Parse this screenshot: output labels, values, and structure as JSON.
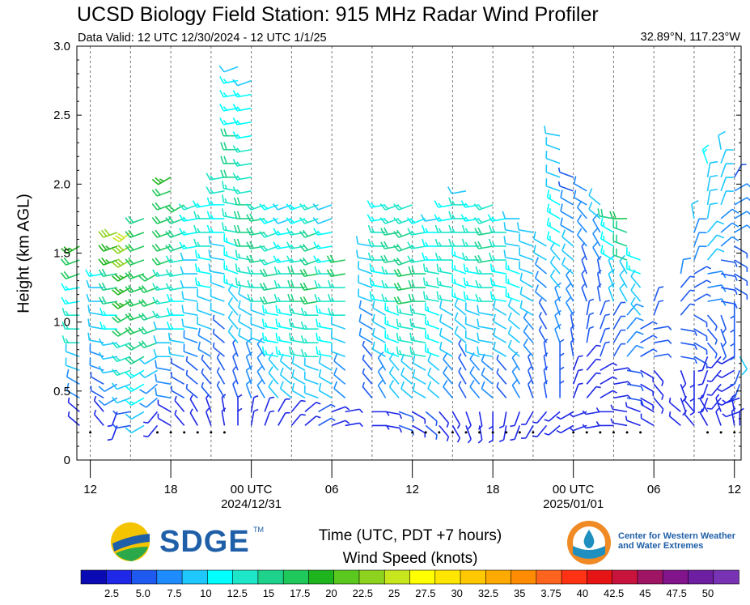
{
  "header": {
    "title": "UCSD Biology Field Station: 915 MHz Radar Wind Profiler",
    "valid": "Data Valid: 12 UTC 12/30/2024 - 12 UTC 1/1/25",
    "coords": "32.89°N, 117.23°W"
  },
  "axes": {
    "ylabel": "Height (km AGL)",
    "xlabel": "Time (UTC, PDT +7 hours)"
  },
  "logos": {
    "sdge": "SDGE",
    "sdge_tm": "TM",
    "cw3e": "Center for Western Weather and Water Extremes"
  },
  "colorbar": {
    "title": "Wind Speed (knots)",
    "colors": [
      "#0a0ab4",
      "#1e28e6",
      "#1e5af0",
      "#1e8cff",
      "#1ec8ff",
      "#00ffff",
      "#1ee6c8",
      "#1ed28c",
      "#1ec85a",
      "#1eb41e",
      "#5ac81e",
      "#8cd21e",
      "#c8e61e",
      "#ffff00",
      "#ffe600",
      "#ffc800",
      "#ffaa00",
      "#ff8c00",
      "#ff641e",
      "#ff3214",
      "#e61414",
      "#c8143c",
      "#a01464",
      "#82148c",
      "#6e1ea0",
      "#7832b4"
    ]
  },
  "chart_data": {
    "type": "wind-barb-time-height",
    "title": "UCSD Biology Field Station: 915 MHz Radar Wind Profiler",
    "ylabel": "Height (km AGL)",
    "xlabel": "Time (UTC, PDT +7 hours)",
    "ylim": [
      0,
      3.0
    ],
    "yticks": [
      "0",
      "0.5",
      "1.0",
      "1.5",
      "2.0",
      "2.5",
      "3.0"
    ],
    "x_range_hours": [
      -1,
      48.5
    ],
    "xticks": [
      {
        "h": 0,
        "label": "12",
        "sub": ""
      },
      {
        "h": 6,
        "label": "18",
        "sub": ""
      },
      {
        "h": 12,
        "label": "00 UTC",
        "sub": "2024/12/31"
      },
      {
        "h": 18,
        "label": "06",
        "sub": ""
      },
      {
        "h": 24,
        "label": "12",
        "sub": ""
      },
      {
        "h": 30,
        "label": "18",
        "sub": ""
      },
      {
        "h": 36,
        "label": "00 UTC",
        "sub": "2025/01/01"
      },
      {
        "h": 42,
        "label": "06",
        "sub": ""
      },
      {
        "h": 48,
        "label": "12",
        "sub": ""
      }
    ],
    "dashed_hours": [
      0,
      3,
      6,
      9,
      12,
      15,
      18,
      21,
      24,
      27,
      30,
      33,
      36,
      39,
      42,
      45,
      48
    ],
    "colorbar_labels": [
      "2.5",
      "5.0",
      "7.5",
      "10",
      "12.5",
      "15",
      "17.5",
      "20",
      "22.5",
      "25",
      "27.5",
      "30",
      "32.5",
      "35",
      "3.75",
      "40",
      "42.5",
      "45",
      "47.5",
      "50"
    ],
    "profiles": [
      {
        "h": -0.8,
        "top": 1.65,
        "spd": [
          4,
          8,
          12,
          16,
          14,
          20,
          24
        ],
        "dir": [
          310,
          300,
          290,
          270,
          260,
          250,
          240
        ]
      },
      {
        "h": 1.0,
        "top": 1.4,
        "spd": [
          3,
          6,
          8,
          10,
          12,
          14
        ],
        "dir": [
          320,
          300,
          290,
          280,
          270,
          260
        ]
      },
      {
        "h": 2.0,
        "top": 1.75,
        "spd": [
          4,
          8,
          10,
          14,
          18,
          24,
          28
        ],
        "dir": [
          200,
          240,
          260,
          270,
          260,
          250,
          250
        ]
      },
      {
        "h": 3.0,
        "top": 1.75,
        "spd": [
          6,
          10,
          16,
          20,
          24,
          28,
          32
        ],
        "dir": [
          260,
          250,
          250,
          240,
          240,
          240,
          230
        ]
      },
      {
        "h": 4.0,
        "top": 1.85,
        "spd": [
          10,
          14,
          18,
          22,
          22,
          20,
          18
        ],
        "dir": [
          240,
          240,
          240,
          250,
          250,
          250,
          250
        ]
      },
      {
        "h": 5.0,
        "top": 1.4,
        "spd": [
          3,
          8,
          12,
          18,
          22,
          20
        ],
        "dir": [
          220,
          230,
          240,
          250,
          250,
          240
        ]
      },
      {
        "h": 6.0,
        "top": 2.15,
        "spd": [
          4,
          8,
          12,
          16,
          20,
          22,
          24
        ],
        "dir": [
          300,
          280,
          270,
          260,
          250,
          250,
          240
        ]
      },
      {
        "h": 7.0,
        "top": 1.9,
        "spd": [
          3,
          6,
          10,
          14,
          16,
          18,
          20
        ],
        "dir": [
          320,
          300,
          280,
          270,
          260,
          250,
          240
        ]
      },
      {
        "h": 8.0,
        "top": 1.9,
        "spd": [
          3,
          6,
          8,
          10,
          12,
          14,
          16
        ],
        "dir": [
          330,
          310,
          290,
          280,
          270,
          260,
          250
        ]
      },
      {
        "h": 9.0,
        "top": 1.9,
        "spd": [
          3,
          5,
          8,
          12,
          14,
          16,
          14
        ],
        "dir": [
          340,
          320,
          300,
          290,
          280,
          270,
          260
        ]
      },
      {
        "h": 10.0,
        "top": 2.1,
        "spd": [
          3,
          5,
          6,
          10,
          12,
          14,
          16
        ],
        "dir": [
          350,
          330,
          310,
          290,
          280,
          270,
          260
        ]
      },
      {
        "h": 11.0,
        "top": 2.95,
        "spd": [
          4,
          6,
          10,
          14,
          16,
          18,
          14,
          12
        ],
        "dir": [
          360,
          340,
          320,
          290,
          280,
          270,
          260,
          250
        ]
      },
      {
        "h": 12.0,
        "top": 2.85,
        "spd": [
          4,
          8,
          12,
          16,
          18,
          16,
          14,
          12
        ],
        "dir": [
          10,
          340,
          300,
          280,
          270,
          260,
          260,
          250
        ]
      },
      {
        "h": 13.0,
        "top": 1.95,
        "spd": [
          3,
          8,
          12,
          16,
          18,
          16
        ],
        "dir": [
          20,
          330,
          290,
          270,
          260,
          250
        ]
      },
      {
        "h": 14.0,
        "top": 1.9,
        "spd": [
          4,
          10,
          14,
          18,
          16,
          14
        ],
        "dir": [
          30,
          320,
          280,
          260,
          250,
          250
        ]
      },
      {
        "h": 15.0,
        "top": 1.9,
        "spd": [
          3,
          10,
          14,
          16,
          14,
          12
        ],
        "dir": [
          40,
          310,
          280,
          270,
          260,
          250
        ]
      },
      {
        "h": 16.0,
        "top": 1.9,
        "spd": [
          4,
          12,
          16,
          18,
          16,
          14
        ],
        "dir": [
          50,
          300,
          280,
          270,
          260,
          250
        ]
      },
      {
        "h": 17.0,
        "top": 1.9,
        "spd": [
          5,
          12,
          16,
          20,
          18,
          16
        ],
        "dir": [
          60,
          290,
          270,
          260,
          250,
          250
        ]
      },
      {
        "h": 18.0,
        "top": 1.9,
        "spd": [
          4,
          10,
          14,
          16,
          14,
          12
        ],
        "dir": [
          70,
          300,
          280,
          270,
          260,
          250
        ]
      },
      {
        "h": 19.0,
        "top": 1.5,
        "spd": [
          3,
          8,
          12,
          16,
          20
        ],
        "dir": [
          80,
          310,
          290,
          270,
          260
        ]
      },
      {
        "h": 21.0,
        "top": 1.6,
        "spd": [
          3,
          5,
          8,
          10,
          12
        ],
        "dir": [
          90,
          320,
          300,
          290,
          280
        ]
      },
      {
        "h": 22.0,
        "top": 1.9,
        "spd": [
          4,
          8,
          12,
          14,
          16,
          14
        ],
        "dir": [
          100,
          330,
          300,
          280,
          270,
          260
        ]
      },
      {
        "h": 23.0,
        "top": 1.9,
        "spd": [
          5,
          10,
          14,
          16,
          18,
          16
        ],
        "dir": [
          110,
          320,
          290,
          270,
          260,
          250
        ]
      },
      {
        "h": 24.0,
        "top": 1.9,
        "spd": [
          4,
          10,
          16,
          20,
          18,
          16
        ],
        "dir": [
          120,
          310,
          280,
          260,
          250,
          250
        ]
      },
      {
        "h": 25.0,
        "top": 1.85,
        "spd": [
          5,
          12,
          16,
          18,
          16,
          14
        ],
        "dir": [
          130,
          300,
          280,
          270,
          260,
          250
        ]
      },
      {
        "h": 26.0,
        "top": 1.85,
        "spd": [
          4,
          10,
          14,
          16,
          14,
          12
        ],
        "dir": [
          140,
          310,
          290,
          280,
          270,
          260
        ]
      },
      {
        "h": 27.0,
        "top": 1.9,
        "spd": [
          3,
          8,
          12,
          16,
          16,
          14
        ],
        "dir": [
          150,
          320,
          300,
          280,
          270,
          260
        ]
      },
      {
        "h": 28.0,
        "top": 2.05,
        "spd": [
          3,
          6,
          10,
          14,
          16,
          12
        ],
        "dir": [
          160,
          330,
          310,
          290,
          270,
          260
        ]
      },
      {
        "h": 29.0,
        "top": 1.9,
        "spd": [
          4,
          8,
          12,
          14,
          16,
          14
        ],
        "dir": [
          170,
          320,
          290,
          280,
          270,
          260
        ]
      },
      {
        "h": 30.0,
        "top": 1.9,
        "spd": [
          3,
          8,
          12,
          16,
          18,
          16
        ],
        "dir": [
          180,
          310,
          280,
          270,
          260,
          250
        ]
      },
      {
        "h": 31.0,
        "top": 1.85,
        "spd": [
          3,
          6,
          10,
          14,
          16,
          14
        ],
        "dir": [
          190,
          320,
          300,
          280,
          270,
          260
        ]
      },
      {
        "h": 32.0,
        "top": 1.85,
        "spd": [
          4,
          8,
          12,
          14,
          12,
          10
        ],
        "dir": [
          200,
          330,
          310,
          290,
          280,
          270
        ]
      },
      {
        "h": 33.0,
        "top": 1.7,
        "spd": [
          3,
          6,
          8,
          10,
          12,
          10
        ],
        "dir": [
          210,
          340,
          320,
          300,
          290,
          280
        ]
      },
      {
        "h": 34.0,
        "top": 1.6,
        "spd": [
          3,
          5,
          6,
          8,
          10
        ],
        "dir": [
          220,
          350,
          330,
          310,
          300
        ]
      },
      {
        "h": 35.0,
        "top": 2.45,
        "spd": [
          3,
          5,
          8,
          10,
          14,
          12,
          10
        ],
        "dir": [
          230,
          360,
          340,
          320,
          300,
          290,
          280
        ]
      },
      {
        "h": 36.0,
        "top": 2.1,
        "spd": [
          3,
          4,
          6,
          8,
          10,
          8,
          6
        ],
        "dir": [
          240,
          20,
          350,
          330,
          310,
          300,
          290
        ]
      },
      {
        "h": 37.0,
        "top": 2.0,
        "spd": [
          3,
          4,
          5,
          6,
          8,
          8
        ],
        "dir": [
          250,
          40,
          10,
          340,
          320,
          300
        ]
      },
      {
        "h": 38.0,
        "top": 1.9,
        "spd": [
          3,
          4,
          5,
          6,
          8,
          12
        ],
        "dir": [
          260,
          60,
          20,
          350,
          330,
          310
        ]
      },
      {
        "h": 39.0,
        "top": 1.85,
        "spd": [
          3,
          4,
          6,
          10,
          14,
          18
        ],
        "dir": [
          270,
          80,
          30,
          340,
          300,
          280
        ]
      },
      {
        "h": 40.0,
        "top": 1.85,
        "spd": [
          3,
          5,
          8,
          12,
          18,
          22
        ],
        "dir": [
          280,
          100,
          40,
          330,
          290,
          270
        ]
      },
      {
        "h": 41.0,
        "top": 1.5,
        "spd": [
          3,
          4,
          6,
          10,
          14
        ],
        "dir": [
          290,
          120,
          60,
          320,
          290
        ]
      },
      {
        "h": 42.0,
        "top": 1.2,
        "spd": [
          3,
          4,
          5,
          6
        ],
        "dir": [
          300,
          140,
          80,
          20
        ]
      },
      {
        "h": 44.0,
        "top": 1.4,
        "spd": [
          3,
          4,
          5,
          6,
          8
        ],
        "dir": [
          310,
          160,
          100,
          40,
          10
        ]
      },
      {
        "h": 45.0,
        "top": 1.85,
        "spd": [
          3,
          4,
          5,
          6,
          8,
          12
        ],
        "dir": [
          320,
          180,
          120,
          60,
          20,
          350
        ]
      },
      {
        "h": 46.0,
        "top": 2.25,
        "spd": [
          3,
          4,
          6,
          8,
          10,
          12,
          14
        ],
        "dir": [
          330,
          200,
          140,
          80,
          40,
          10,
          340
        ]
      },
      {
        "h": 47.0,
        "top": 2.35,
        "spd": [
          3,
          4,
          5,
          6,
          8,
          10,
          12
        ],
        "dir": [
          340,
          220,
          160,
          100,
          50,
          20,
          350
        ]
      },
      {
        "h": 48.0,
        "top": 2.15,
        "spd": [
          3,
          4,
          5,
          6,
          8,
          6
        ],
        "dir": [
          350,
          240,
          180,
          120,
          60,
          30
        ]
      },
      {
        "h": 48.4,
        "top": 0.8,
        "spd": [
          3,
          4,
          6,
          10
        ],
        "dir": [
          360,
          250,
          200,
          150
        ]
      }
    ],
    "calm_markers_h": [
      0,
      5,
      6,
      7,
      8,
      9,
      10,
      24,
      25,
      26,
      27,
      28,
      29,
      30,
      31,
      32,
      33,
      36,
      37,
      38,
      39,
      40,
      41,
      46,
      47,
      48
    ]
  }
}
